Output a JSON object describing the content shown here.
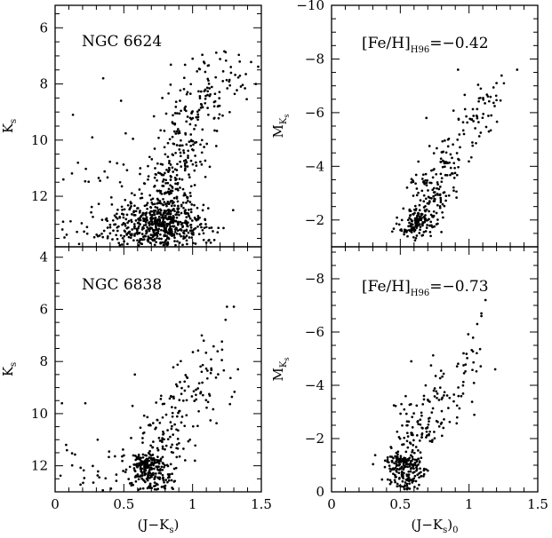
{
  "chart_data": [
    {
      "type": "scatter",
      "id": "tl",
      "annotation": "NGC 6624",
      "ylabel_main": "K",
      "ylabel_sub": "s",
      "xlim": [
        0,
        1.5
      ],
      "ylim": [
        13.8,
        5.2
      ],
      "y_inverted": true,
      "xticks": [],
      "yticks": [
        6,
        8,
        10,
        12
      ],
      "yticklabels": [
        "6",
        "8",
        "10",
        "12"
      ],
      "groups": [
        {
          "cx": 0.78,
          "cy": 13.0,
          "sx": 0.16,
          "sy": 0.5,
          "n": 520
        },
        {
          "cx": 0.83,
          "cy": 11.6,
          "sx": 0.09,
          "sy": 0.8,
          "n": 150
        },
        {
          "cx": 0.96,
          "cy": 9.8,
          "sx": 0.09,
          "sy": 0.9,
          "n": 110
        },
        {
          "cx": 1.12,
          "cy": 8.3,
          "sx": 0.1,
          "sy": 0.7,
          "n": 60
        },
        {
          "cx": 1.3,
          "cy": 7.6,
          "sx": 0.08,
          "sy": 0.4,
          "n": 20
        },
        {
          "cx": 0.5,
          "cy": 13.2,
          "sx": 0.25,
          "sy": 0.45,
          "n": 90
        },
        {
          "cx": 0.45,
          "cy": 11.8,
          "sx": 0.18,
          "sy": 0.9,
          "n": 35
        }
      ],
      "points": [
        [
          0.35,
          7.8
        ],
        [
          0.13,
          9.1
        ],
        [
          1.0,
          7.1
        ],
        [
          0.78,
          8.5
        ],
        [
          0.48,
          8.6
        ],
        [
          0.27,
          9.9
        ],
        [
          1.22,
          7.9
        ],
        [
          1.46,
          8.0
        ],
        [
          0.64,
          12.6
        ],
        [
          0.06,
          11.4
        ]
      ]
    },
    {
      "type": "scatter",
      "id": "tr",
      "annotation_main": "[Fe/H]",
      "annotation_sub": "H96",
      "annotation_tail": "=−0.42",
      "ylabel_main": "M",
      "ylabel_sub": "K",
      "ylabel_subsub": "s",
      "xlim": [
        0,
        1.5
      ],
      "ylim": [
        -1.0,
        -10.0
      ],
      "y_inverted": true,
      "xticks": [],
      "yticks": [
        -2,
        -4,
        -6,
        -8,
        -10
      ],
      "yticklabels": [
        "−2",
        "−4",
        "−6",
        "−8",
        "−10"
      ],
      "groups": [
        {
          "cx": 0.62,
          "cy": -1.9,
          "sx": 0.07,
          "sy": 0.3,
          "n": 130
        },
        {
          "cx": 0.7,
          "cy": -2.9,
          "sx": 0.08,
          "sy": 0.6,
          "n": 90
        },
        {
          "cx": 0.85,
          "cy": -4.0,
          "sx": 0.07,
          "sy": 0.6,
          "n": 60
        },
        {
          "cx": 1.02,
          "cy": -5.5,
          "sx": 0.07,
          "sy": 0.6,
          "n": 40
        },
        {
          "cx": 1.15,
          "cy": -6.5,
          "sx": 0.06,
          "sy": 0.5,
          "n": 18
        }
      ],
      "points": [
        [
          0.69,
          -5.8
        ],
        [
          0.92,
          -7.6
        ],
        [
          1.35,
          -7.6
        ],
        [
          1.2,
          -7.1
        ],
        [
          0.58,
          -3.4
        ]
      ]
    },
    {
      "type": "scatter",
      "id": "bl",
      "annotation": "NGC 6838",
      "ylabel_main": "K",
      "ylabel_sub": "s",
      "xlim": [
        0,
        1.5
      ],
      "ylim": [
        13.0,
        3.6
      ],
      "y_inverted": true,
      "xticks": [
        0,
        0.5,
        1,
        1.5
      ],
      "xticklabels": [
        "0",
        "0.5",
        "1",
        "1.5"
      ],
      "xlabel_main": "(J−K",
      "xlabel_sub": "s",
      "xlabel_tail": ")",
      "yticks": [
        4,
        6,
        8,
        10,
        12
      ],
      "yticklabels": [
        "4",
        "6",
        "8",
        "10",
        "12"
      ],
      "groups": [
        {
          "cx": 0.67,
          "cy": 11.9,
          "sx": 0.05,
          "sy": 0.15,
          "n": 70
        },
        {
          "cx": 0.7,
          "cy": 12.4,
          "sx": 0.08,
          "sy": 0.45,
          "n": 180
        },
        {
          "cx": 0.78,
          "cy": 10.8,
          "sx": 0.12,
          "sy": 0.6,
          "n": 80
        },
        {
          "cx": 0.95,
          "cy": 9.4,
          "sx": 0.12,
          "sy": 0.7,
          "n": 60
        },
        {
          "cx": 1.14,
          "cy": 8.2,
          "sx": 0.09,
          "sy": 0.6,
          "n": 25
        },
        {
          "cx": 0.35,
          "cy": 12.2,
          "sx": 0.2,
          "sy": 0.6,
          "n": 40
        }
      ],
      "points": [
        [
          1.25,
          5.9
        ],
        [
          1.3,
          5.9
        ],
        [
          1.24,
          6.4
        ],
        [
          0.05,
          9.6
        ],
        [
          0.22,
          9.6
        ],
        [
          0.58,
          8.5
        ],
        [
          1.33,
          8.3
        ],
        [
          0.08,
          11.2
        ],
        [
          0.31,
          11.0
        ]
      ]
    },
    {
      "type": "scatter",
      "id": "br",
      "annotation_main": "[Fe/H]",
      "annotation_sub": "H96",
      "annotation_tail": "=−0.73",
      "ylabel_main": "M",
      "ylabel_sub": "K",
      "ylabel_subsub": "s",
      "xlim": [
        0,
        1.5
      ],
      "ylim": [
        0.0,
        -9.2
      ],
      "y_inverted": true,
      "xticks": [
        0,
        0.5,
        1,
        1.5
      ],
      "xticklabels": [
        "0",
        "0.5",
        "1",
        "1.5"
      ],
      "xlabel_main": "(J−K",
      "xlabel_sub": "s",
      "xlabel_tail": ")",
      "xlabel_tailsub": "0",
      "yticks": [
        0,
        -2,
        -4,
        -6,
        -8
      ],
      "yticklabels": [
        "0",
        "−2",
        "−4",
        "−6",
        "−8"
      ],
      "groups": [
        {
          "cx": 0.51,
          "cy": -1.15,
          "sx": 0.05,
          "sy": 0.12,
          "n": 60
        },
        {
          "cx": 0.55,
          "cy": -0.7,
          "sx": 0.07,
          "sy": 0.45,
          "n": 150
        },
        {
          "cx": 0.64,
          "cy": -2.3,
          "sx": 0.1,
          "sy": 0.6,
          "n": 80
        },
        {
          "cx": 0.8,
          "cy": -3.5,
          "sx": 0.1,
          "sy": 0.6,
          "n": 50
        },
        {
          "cx": 1.0,
          "cy": -5.0,
          "sx": 0.06,
          "sy": 0.6,
          "n": 18
        }
      ],
      "points": [
        [
          1.12,
          -7.2
        ],
        [
          1.09,
          -6.7
        ],
        [
          1.06,
          -6.3
        ],
        [
          1.09,
          -6.6
        ],
        [
          0.58,
          -4.9
        ],
        [
          1.19,
          -4.6
        ],
        [
          0.96,
          -5.2
        ]
      ]
    }
  ]
}
